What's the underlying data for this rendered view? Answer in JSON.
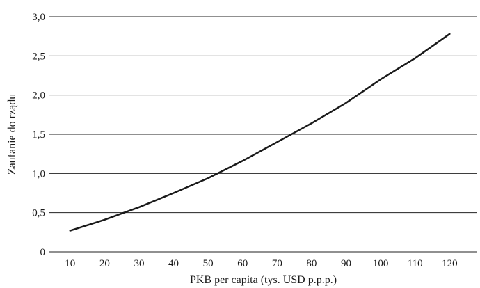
{
  "chart_data": {
    "type": "line",
    "title": "",
    "xlabel": "PKB per capita (tys. USD p.p.p.)",
    "ylabel": "Zaufanie do rządu",
    "x": [
      10,
      20,
      30,
      40,
      50,
      60,
      70,
      80,
      90,
      100,
      110,
      120
    ],
    "series": [
      {
        "values": [
          0.27,
          0.41,
          0.57,
          0.75,
          0.94,
          1.16,
          1.4,
          1.64,
          1.9,
          2.2,
          2.47,
          2.78
        ]
      }
    ],
    "xticks": [
      "10",
      "20",
      "30",
      "40",
      "50",
      "60",
      "70",
      "80",
      "90",
      "100",
      "110",
      "120"
    ],
    "yticks": [
      "0",
      "0,5",
      "1,0",
      "1,5",
      "2,0",
      "2,5",
      "3,0"
    ],
    "xlim": [
      4,
      128
    ],
    "ylim": [
      0,
      3
    ],
    "grid": "horizontal",
    "line_color": "#1a1a1a"
  }
}
